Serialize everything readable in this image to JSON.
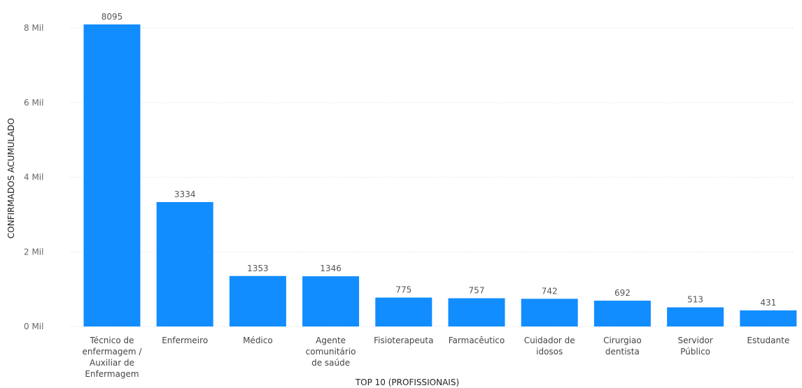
{
  "chart_data": {
    "type": "bar",
    "title": "",
    "xlabel": "TOP 10 (PROFISSIONAIS)",
    "ylabel": "CONFIRMADOS ACUMULADO",
    "ylim": [
      0,
      8400
    ],
    "grid": true,
    "color": "#118dff",
    "yticks": [
      {
        "value": 0,
        "label": "0 Mil"
      },
      {
        "value": 2000,
        "label": "2 Mil"
      },
      {
        "value": 4000,
        "label": "4 Mil"
      },
      {
        "value": 6000,
        "label": "6 Mil"
      },
      {
        "value": 8000,
        "label": "8 Mil"
      }
    ],
    "categories": [
      [
        "Técnico de",
        "enfermagem /",
        "Auxiliar de",
        "Enfermagem"
      ],
      [
        "Enfermeiro"
      ],
      [
        "Médico"
      ],
      [
        "Agente",
        "comunitário",
        "de saúde"
      ],
      [
        "Fisioterapeuta"
      ],
      [
        "Farmacêutico"
      ],
      [
        "Cuidador de",
        "idosos"
      ],
      [
        "Cirurgiao",
        "dentista"
      ],
      [
        "Servidor",
        "Público"
      ],
      [
        "Estudante"
      ]
    ],
    "values": [
      8095,
      3334,
      1353,
      1346,
      775,
      757,
      742,
      692,
      513,
      431
    ]
  }
}
